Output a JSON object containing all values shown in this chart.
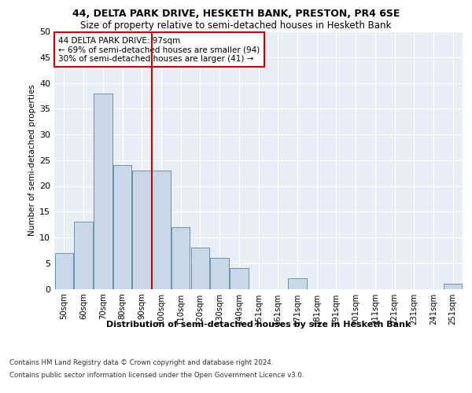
{
  "title": "44, DELTA PARK DRIVE, HESKETH BANK, PRESTON, PR4 6SE",
  "subtitle": "Size of property relative to semi-detached houses in Hesketh Bank",
  "xlabel": "Distribution of semi-detached houses by size in Hesketh Bank",
  "ylabel": "Number of semi-detached properties",
  "bar_color": "#c8d8e8",
  "bar_edge_color": "#5588aa",
  "categories": [
    "50sqm",
    "60sqm",
    "70sqm",
    "80sqm",
    "90sqm",
    "100sqm",
    "110sqm",
    "120sqm",
    "130sqm",
    "140sqm",
    "151sqm",
    "161sqm",
    "171sqm",
    "181sqm",
    "191sqm",
    "201sqm",
    "211sqm",
    "221sqm",
    "231sqm",
    "241sqm",
    "251sqm"
  ],
  "values": [
    7,
    13,
    38,
    24,
    23,
    23,
    12,
    8,
    6,
    4,
    0,
    0,
    2,
    0,
    0,
    0,
    0,
    0,
    0,
    0,
    1
  ],
  "ylim": [
    0,
    50
  ],
  "yticks": [
    0,
    5,
    10,
    15,
    20,
    25,
    30,
    35,
    40,
    45,
    50
  ],
  "property_line_index": 4.5,
  "property_line_color": "#cc0000",
  "annotation_text": "44 DELTA PARK DRIVE: 97sqm\n← 69% of semi-detached houses are smaller (94)\n30% of semi-detached houses are larger (41) →",
  "annotation_box_color": "#cc0000",
  "footer1": "Contains HM Land Registry data © Crown copyright and database right 2024.",
  "footer2": "Contains public sector information licensed under the Open Government Licence v3.0.",
  "background_color": "#e8eef4",
  "grid_color": "#ffffff"
}
